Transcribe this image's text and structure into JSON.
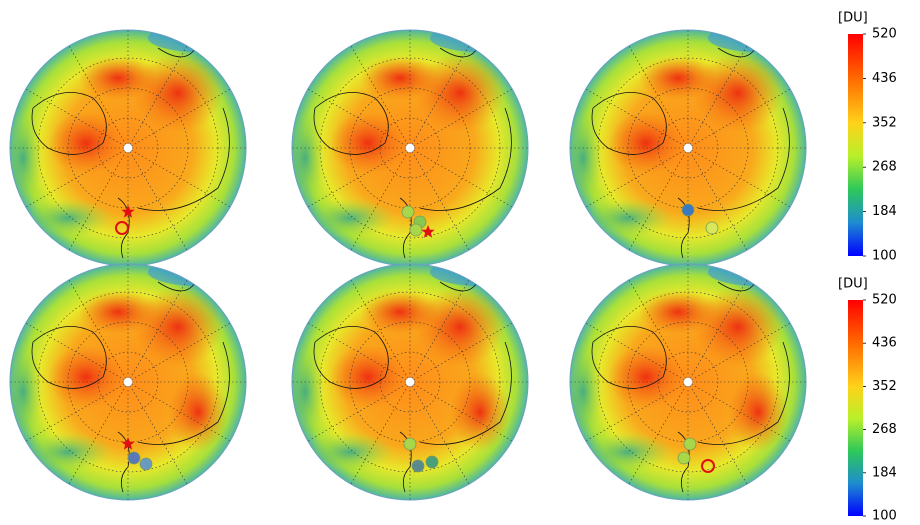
{
  "colorbars": [
    {
      "unit": "[DU]",
      "range": [
        100,
        520
      ],
      "ticks": [
        520,
        436,
        352,
        268,
        184,
        100
      ]
    },
    {
      "unit": "[DU]",
      "range": [
        100,
        520
      ],
      "ticks": [
        520,
        436,
        352,
        268,
        184,
        100
      ]
    }
  ]
}
